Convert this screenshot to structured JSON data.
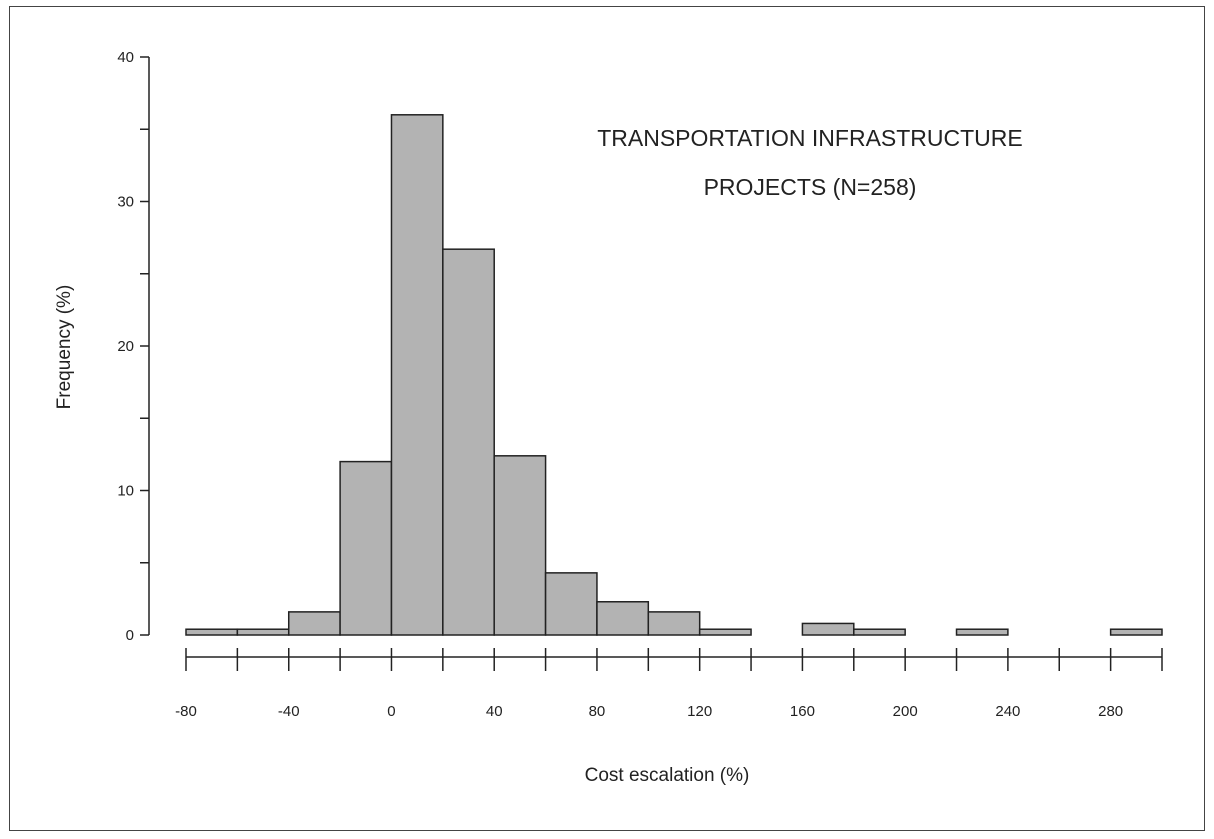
{
  "chart_data": {
    "type": "bar",
    "title_lines": [
      "TRANSPORTATION INFRASTRUCTURE",
      "PROJECTS (N=258)"
    ],
    "xlabel": "Cost escalation (%)",
    "ylabel": "Frequency (%)",
    "xlim": [
      -80,
      300
    ],
    "ylim": [
      0,
      40
    ],
    "bin_width": 20,
    "bins": [
      {
        "start": -80,
        "end": -60,
        "value": 0.4
      },
      {
        "start": -60,
        "end": -40,
        "value": 0.4
      },
      {
        "start": -40,
        "end": -20,
        "value": 1.6
      },
      {
        "start": -20,
        "end": 0,
        "value": 12.0
      },
      {
        "start": 0,
        "end": 20,
        "value": 36.0
      },
      {
        "start": 20,
        "end": 40,
        "value": 26.7
      },
      {
        "start": 40,
        "end": 60,
        "value": 12.4
      },
      {
        "start": 60,
        "end": 80,
        "value": 4.3
      },
      {
        "start": 80,
        "end": 100,
        "value": 2.3
      },
      {
        "start": 100,
        "end": 120,
        "value": 1.6
      },
      {
        "start": 120,
        "end": 140,
        "value": 0.4
      },
      {
        "start": 140,
        "end": 160,
        "value": 0.0
      },
      {
        "start": 160,
        "end": 180,
        "value": 0.8
      },
      {
        "start": 180,
        "end": 200,
        "value": 0.4
      },
      {
        "start": 200,
        "end": 220,
        "value": 0.0
      },
      {
        "start": 220,
        "end": 240,
        "value": 0.4
      },
      {
        "start": 240,
        "end": 260,
        "value": 0.0
      },
      {
        "start": 260,
        "end": 280,
        "value": 0.0
      },
      {
        "start": 280,
        "end": 300,
        "value": 0.4
      }
    ],
    "x_tick_labels": [
      "-80",
      "-40",
      "0",
      "40",
      "80",
      "120",
      "160",
      "200",
      "240",
      "280"
    ],
    "y_tick_labels": [
      "0",
      "10",
      "20",
      "30",
      "40"
    ],
    "colors": {
      "bar_fill": "#b3b3b3",
      "bar_stroke": "#222222"
    }
  }
}
